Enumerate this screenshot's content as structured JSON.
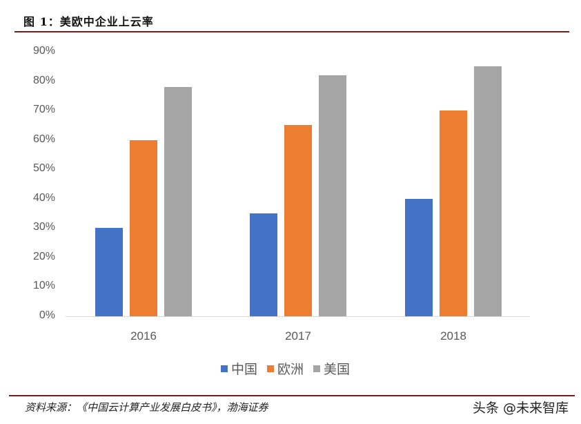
{
  "figure": {
    "title": "图 1：美欧中企业上云率",
    "source": "资料来源：《中国云计算产业发展白皮书》，渤海证券",
    "watermark": "头条 @未来智库"
  },
  "colors": {
    "china": "#4472C4",
    "europe": "#ED7D31",
    "usa": "#A5A5A5",
    "rule": "#7A1A1A"
  },
  "chart_data": {
    "type": "bar",
    "title": "美欧中企业上云率",
    "categories": [
      "2016",
      "2017",
      "2018"
    ],
    "series": [
      {
        "name": "中国",
        "values": [
          30,
          35,
          40
        ]
      },
      {
        "name": "欧洲",
        "values": [
          60,
          65,
          70
        ]
      },
      {
        "name": "美国",
        "values": [
          78,
          82,
          85
        ]
      }
    ],
    "xlabel": "",
    "ylabel": "",
    "ylim": [
      0,
      90
    ],
    "yticks": [
      "0%",
      "10%",
      "20%",
      "30%",
      "40%",
      "50%",
      "60%",
      "70%",
      "80%",
      "90%"
    ],
    "value_format": "percent",
    "grid": false,
    "legend_position": "bottom"
  },
  "legend": [
    {
      "label": "中国"
    },
    {
      "label": "欧洲"
    },
    {
      "label": "美国"
    }
  ]
}
